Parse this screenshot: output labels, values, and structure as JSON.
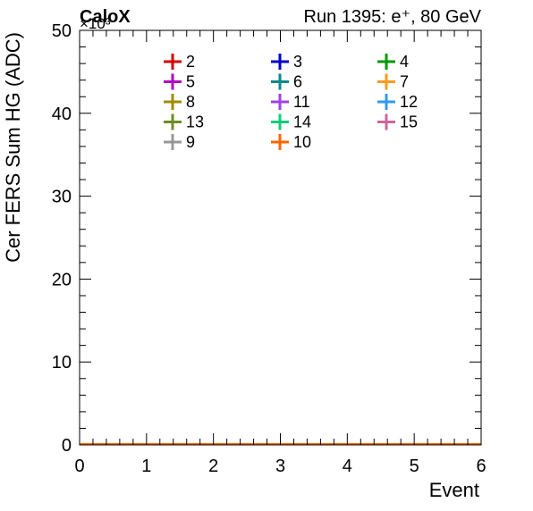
{
  "chart_data": {
    "type": "line",
    "header_left": "CaloX",
    "header_right": "Run 1395: e⁺, 80 GeV",
    "xlabel": "Event",
    "ylabel": "Cer FERS Sum HG (ADC)",
    "y_exponent_label": "×10³",
    "xlim": [
      0,
      6
    ],
    "ylim": [
      0,
      50
    ],
    "x_ticks": [
      0,
      1,
      2,
      3,
      4,
      5,
      6
    ],
    "y_ticks": [
      0,
      10,
      20,
      30,
      40,
      50
    ],
    "legend_columns": 3,
    "series": [
      {
        "name": "2",
        "color": "#d40000",
        "x": [
          0,
          6
        ],
        "y": [
          0,
          0
        ]
      },
      {
        "name": "3",
        "color": "#0000c8",
        "x": [
          0,
          6
        ],
        "y": [
          0,
          0
        ]
      },
      {
        "name": "4",
        "color": "#009900",
        "x": [
          0,
          6
        ],
        "y": [
          0,
          0
        ]
      },
      {
        "name": "5",
        "color": "#b000c8",
        "x": [
          0,
          6
        ],
        "y": [
          0,
          0
        ]
      },
      {
        "name": "6",
        "color": "#008b8b",
        "x": [
          0,
          6
        ],
        "y": [
          0,
          0
        ]
      },
      {
        "name": "7",
        "color": "#ff9a1e",
        "x": [
          0,
          6
        ],
        "y": [
          0,
          0
        ]
      },
      {
        "name": "8",
        "color": "#a08c00",
        "x": [
          0,
          6
        ],
        "y": [
          0,
          0
        ]
      },
      {
        "name": "11",
        "color": "#a040e8",
        "x": [
          0,
          6
        ],
        "y": [
          0,
          0
        ]
      },
      {
        "name": "12",
        "color": "#3399ee",
        "x": [
          0,
          6
        ],
        "y": [
          0,
          0
        ]
      },
      {
        "name": "13",
        "color": "#6b8e23",
        "x": [
          0,
          6
        ],
        "y": [
          0,
          0
        ]
      },
      {
        "name": "14",
        "color": "#11cc77",
        "x": [
          0,
          6
        ],
        "y": [
          0,
          0
        ]
      },
      {
        "name": "15",
        "color": "#cc6699",
        "x": [
          0,
          6
        ],
        "y": [
          0,
          0
        ]
      },
      {
        "name": "9",
        "color": "#999999",
        "x": [
          0,
          6
        ],
        "y": [
          0,
          0
        ]
      },
      {
        "name": "10",
        "color": "#ff6600",
        "x": [
          0,
          6
        ],
        "y": [
          0,
          0
        ]
      }
    ]
  }
}
